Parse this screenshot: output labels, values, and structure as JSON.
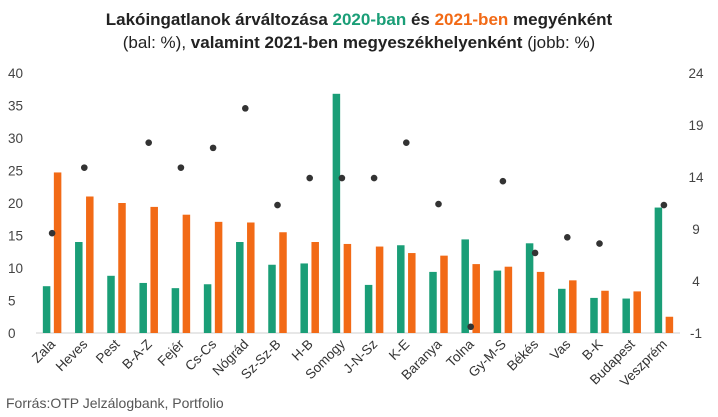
{
  "title": {
    "line1_pre": "Lakóingatlanok árváltozása ",
    "line1_2020": "2020-ban",
    "line1_mid": " és ",
    "line1_2021": "2021-ben",
    "line1_post": " megyénként",
    "line2_a": "(bal: %), ",
    "line2_b": "valamint 2021-ben megyeszékhelyenként",
    "line2_c": " (jobb: %)"
  },
  "source": "Forrás:OTP Jelzálogbank, Portfolio",
  "colors": {
    "s2020": "#1a9e77",
    "s2021": "#f26a16",
    "dots": "#333333"
  },
  "chart_data": {
    "type": "bar",
    "categories": [
      "Zala",
      "Heves",
      "Pest",
      "B-A-Z",
      "Fejér",
      "Cs-Cs",
      "Nógrád",
      "Sz-Sz-B",
      "H-B",
      "Somogy",
      "J-N-Sz",
      "K-E",
      "Baranya",
      "Tolna",
      "Gy-M-S",
      "Békés",
      "Vas",
      "B-K",
      "Budapest",
      "Veszprém"
    ],
    "series": [
      {
        "name": "2020",
        "axis": "left",
        "values": [
          7.2,
          14.0,
          8.8,
          7.7,
          6.9,
          7.5,
          14.0,
          10.5,
          10.7,
          36.8,
          7.4,
          13.5,
          9.4,
          14.4,
          9.6,
          13.8,
          6.8,
          5.4,
          5.3,
          19.3
        ]
      },
      {
        "name": "2021",
        "axis": "left",
        "values": [
          24.7,
          21.0,
          20.0,
          19.4,
          18.2,
          17.1,
          17.0,
          15.5,
          14.0,
          13.7,
          13.3,
          12.3,
          11.9,
          10.6,
          10.2,
          9.4,
          8.1,
          6.5,
          6.4,
          2.5
        ]
      },
      {
        "name": "",
        "axis": "right",
        "type": "scatter",
        "values": [
          8.6,
          14.9,
          null,
          17.3,
          14.9,
          16.8,
          20.6,
          11.3,
          13.9,
          13.9,
          13.9,
          17.3,
          11.4,
          -0.4,
          13.6,
          6.7,
          8.2,
          7.6,
          null,
          11.3
        ]
      }
    ],
    "ylim_left": [
      0,
      40
    ],
    "yticks_left": [
      "0",
      "5",
      "10",
      "15",
      "20",
      "25",
      "30",
      "35",
      "40"
    ],
    "ylim_right": [
      -1,
      24
    ],
    "yticks_right": [
      "-1",
      "4",
      "9",
      "14",
      "19",
      "24"
    ],
    "grid": false,
    "legend": "none"
  }
}
